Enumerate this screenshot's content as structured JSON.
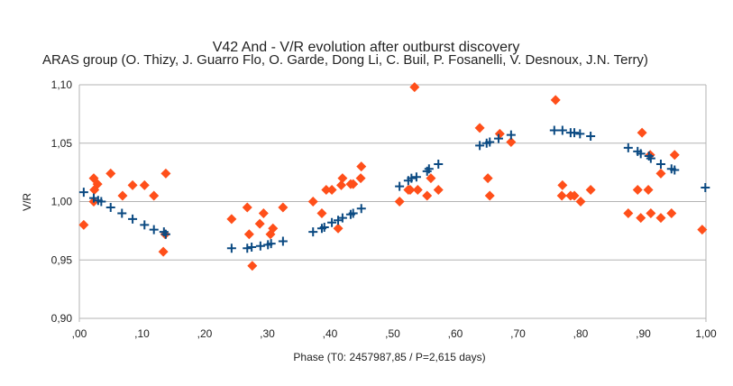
{
  "chart_data": {
    "type": "scatter",
    "title": "V42 And - V/R evolution after outburst discovery",
    "subtitle": "ARAS group (O. Thizy, J. Guarro Flo, O. Garde, Dong Li, C. Buil, P. Fosanelli, V. Desnoux, J.N. Terry)",
    "xlabel": "Phase (T0: 2457987,85 / P=2,615 days)",
    "ylabel": "V/R",
    "xlim": [
      0,
      1
    ],
    "ylim": [
      0.9,
      1.1
    ],
    "x_ticks": [
      ",00",
      ",10",
      ",20",
      ",30",
      ",40",
      ",50",
      ",60",
      ",70",
      ",80",
      ",90",
      "1,00"
    ],
    "y_ticks": [
      "0,90",
      "0,95",
      "1,00",
      "1,05",
      "1,10"
    ],
    "grid": "horizontal",
    "legend": "none",
    "series": [
      {
        "marker": "diamond",
        "color": "#ff4f1a",
        "points": [
          [
            0.007,
            0.98
          ],
          [
            0.023,
            1.02
          ],
          [
            0.029,
            1.015
          ],
          [
            0.024,
            1.01
          ],
          [
            0.023,
            1.0
          ],
          [
            0.05,
            1.024
          ],
          [
            0.069,
            1.005
          ],
          [
            0.085,
            1.014
          ],
          [
            0.104,
            1.014
          ],
          [
            0.119,
            1.005
          ],
          [
            0.138,
            1.024
          ],
          [
            0.137,
            0.972
          ],
          [
            0.134,
            0.957
          ],
          [
            0.243,
            0.985
          ],
          [
            0.268,
            0.995
          ],
          [
            0.271,
            0.972
          ],
          [
            0.276,
            0.945
          ],
          [
            0.288,
            0.981
          ],
          [
            0.294,
            0.99
          ],
          [
            0.305,
            0.972
          ],
          [
            0.309,
            0.977
          ],
          [
            0.325,
            0.995
          ],
          [
            0.373,
            1.0
          ],
          [
            0.387,
            0.99
          ],
          [
            0.394,
            1.01
          ],
          [
            0.403,
            1.01
          ],
          [
            0.413,
            0.977
          ],
          [
            0.418,
            1.014
          ],
          [
            0.42,
            1.02
          ],
          [
            0.433,
            1.015
          ],
          [
            0.437,
            1.015
          ],
          [
            0.449,
            1.02
          ],
          [
            0.45,
            1.03
          ],
          [
            0.511,
            1.0
          ],
          [
            0.525,
            1.01
          ],
          [
            0.528,
            1.01
          ],
          [
            0.535,
            1.098
          ],
          [
            0.54,
            1.01
          ],
          [
            0.555,
            1.005
          ],
          [
            0.561,
            1.02
          ],
          [
            0.573,
            1.01
          ],
          [
            0.639,
            1.063
          ],
          [
            0.652,
            1.02
          ],
          [
            0.655,
            1.005
          ],
          [
            0.671,
            1.058
          ],
          [
            0.689,
            1.051
          ],
          [
            0.76,
            1.087
          ],
          [
            0.77,
            1.005
          ],
          [
            0.771,
            1.014
          ],
          [
            0.784,
            1.005
          ],
          [
            0.79,
            1.005
          ],
          [
            0.8,
            1.0
          ],
          [
            0.816,
            1.01
          ],
          [
            0.876,
            0.99
          ],
          [
            0.891,
            1.01
          ],
          [
            0.896,
            0.986
          ],
          [
            0.898,
            1.059
          ],
          [
            0.908,
            1.01
          ],
          [
            0.911,
            1.04
          ],
          [
            0.912,
            0.99
          ],
          [
            0.928,
            1.024
          ],
          [
            0.928,
            0.986
          ],
          [
            0.945,
            0.99
          ],
          [
            0.95,
            1.04
          ],
          [
            0.994,
            0.976
          ]
        ]
      },
      {
        "marker": "cross",
        "color": "#0b4a82",
        "points": [
          [
            0.007,
            1.008
          ],
          [
            0.023,
            1.003
          ],
          [
            0.03,
            1.001
          ],
          [
            0.035,
            1.0
          ],
          [
            0.05,
            0.995
          ],
          [
            0.068,
            0.99
          ],
          [
            0.085,
            0.985
          ],
          [
            0.104,
            0.98
          ],
          [
            0.119,
            0.976
          ],
          [
            0.135,
            0.974
          ],
          [
            0.138,
            0.972
          ],
          [
            0.243,
            0.96
          ],
          [
            0.268,
            0.96
          ],
          [
            0.275,
            0.961
          ],
          [
            0.289,
            0.962
          ],
          [
            0.301,
            0.963
          ],
          [
            0.306,
            0.964
          ],
          [
            0.325,
            0.966
          ],
          [
            0.373,
            0.974
          ],
          [
            0.387,
            0.977
          ],
          [
            0.391,
            0.978
          ],
          [
            0.403,
            0.982
          ],
          [
            0.413,
            0.984
          ],
          [
            0.42,
            0.986
          ],
          [
            0.433,
            0.989
          ],
          [
            0.437,
            0.99
          ],
          [
            0.45,
            0.994
          ],
          [
            0.511,
            1.013
          ],
          [
            0.525,
            1.018
          ],
          [
            0.53,
            1.02
          ],
          [
            0.538,
            1.021
          ],
          [
            0.555,
            1.026
          ],
          [
            0.558,
            1.028
          ],
          [
            0.573,
            1.032
          ],
          [
            0.639,
            1.048
          ],
          [
            0.65,
            1.05
          ],
          [
            0.655,
            1.051
          ],
          [
            0.669,
            1.054
          ],
          [
            0.689,
            1.057
          ],
          [
            0.758,
            1.061
          ],
          [
            0.771,
            1.061
          ],
          [
            0.784,
            1.059
          ],
          [
            0.79,
            1.059
          ],
          [
            0.799,
            1.058
          ],
          [
            0.816,
            1.056
          ],
          [
            0.876,
            1.046
          ],
          [
            0.891,
            1.043
          ],
          [
            0.896,
            1.041
          ],
          [
            0.909,
            1.039
          ],
          [
            0.912,
            1.037
          ],
          [
            0.928,
            1.032
          ],
          [
            0.945,
            1.028
          ],
          [
            0.95,
            1.027
          ],
          [
            0.999,
            1.012
          ]
        ]
      }
    ]
  }
}
